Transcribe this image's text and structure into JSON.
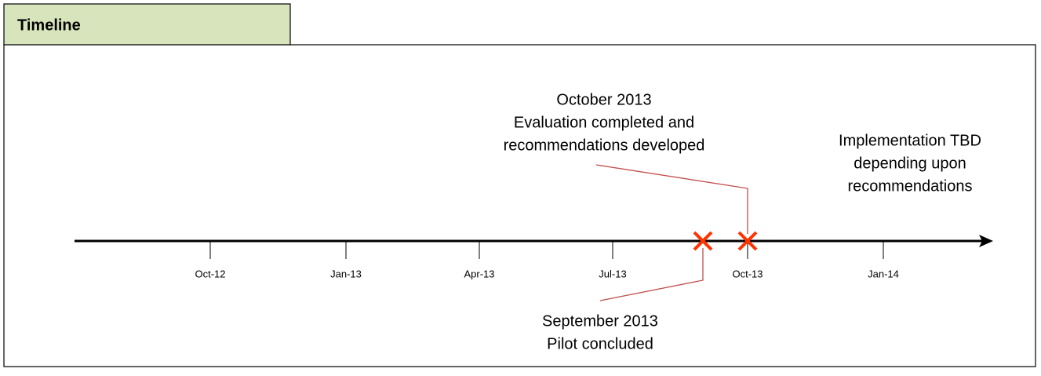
{
  "header": {
    "title": "Timeline"
  },
  "axis": {
    "ticks": [
      "Oct-12",
      "Jan-13",
      "Apr-13",
      "Jul-13",
      "Oct-13",
      "Jan-14"
    ]
  },
  "events": [
    {
      "lines": [
        "October 2013",
        "Evaluation completed and",
        "recommendations developed"
      ]
    },
    {
      "lines": [
        "September 2013",
        "Pilot concluded"
      ]
    },
    {
      "lines": [
        "Implementation TBD",
        "depending upon",
        "recommendations"
      ]
    }
  ]
}
